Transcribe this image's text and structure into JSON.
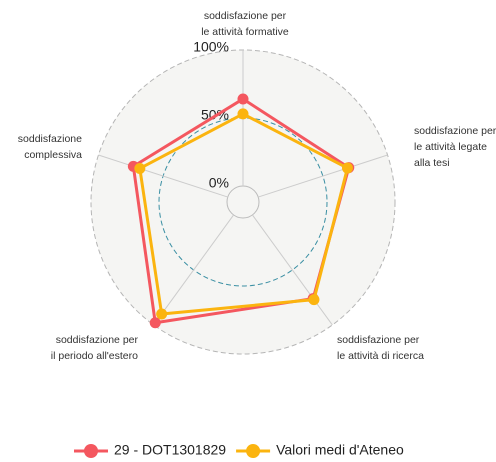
{
  "chart_data": {
    "type": "radar",
    "categories": [
      "soddisfazione per\nle attività formative",
      "soddisfazione per\nle attività legate\nalla tesi",
      "soddisfazione per\nle attività di ricerca",
      "soddisfazione per\nil periodo all'estero",
      "soddisfazione\ncomplessiva"
    ],
    "series": [
      {
        "name": "29 - DOT1301829",
        "color": "#f4575f",
        "values": [
          64,
          70,
          76,
          98,
          73
        ]
      },
      {
        "name": "Valori medi d'Ateneo",
        "color": "#fbb40f",
        "values": [
          53,
          69,
          77,
          90,
          68
        ]
      }
    ],
    "ylim": [
      0,
      100
    ],
    "yticks": [
      {
        "value": 0,
        "label": "0%"
      },
      {
        "value": 50,
        "label": "50%"
      },
      {
        "value": 100,
        "label": "100%"
      }
    ],
    "grid": true,
    "legend": "bottom"
  }
}
